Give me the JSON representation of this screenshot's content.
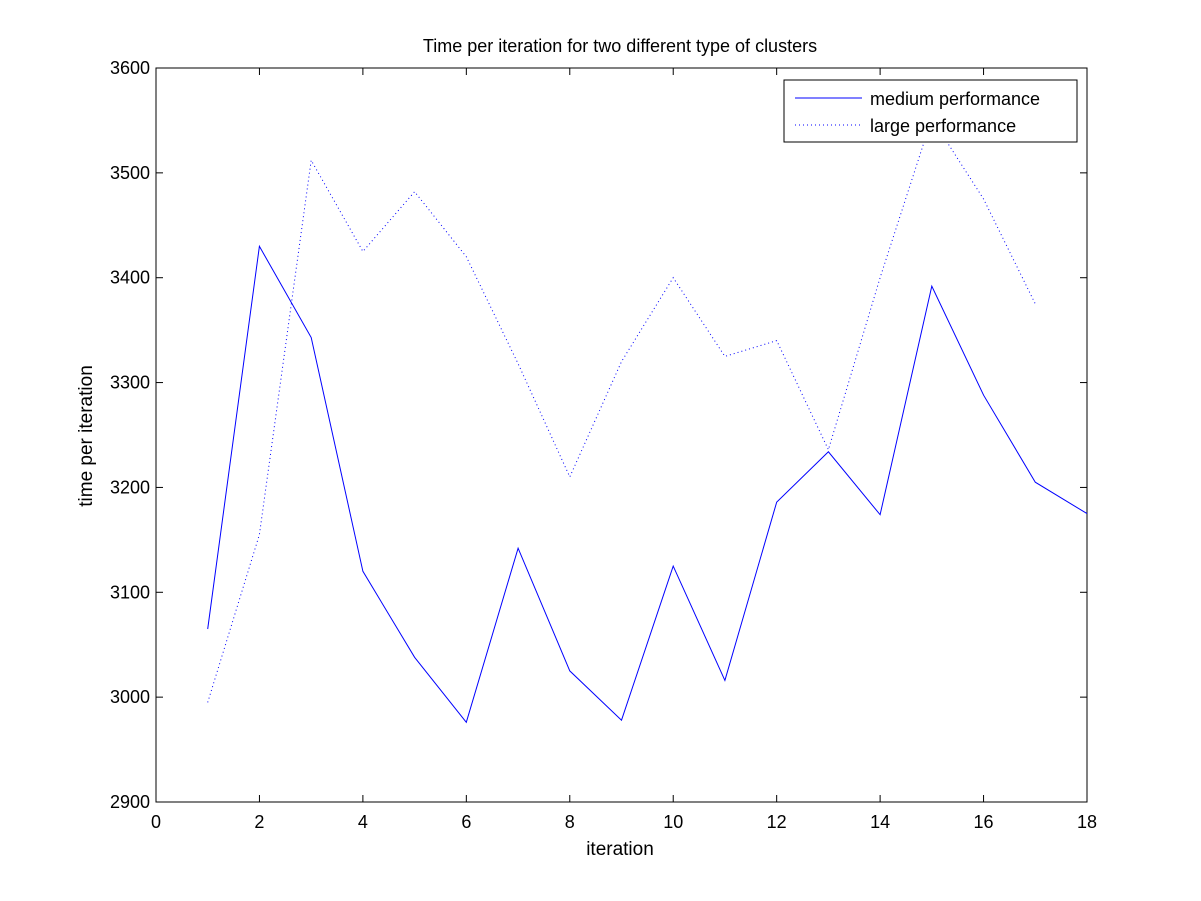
{
  "chart_data": {
    "type": "line",
    "title": "Time per iteration for two different type of clusters",
    "xlabel": "iteration",
    "ylabel": "time per iteration",
    "xlim": [
      0,
      18
    ],
    "ylim": [
      2900,
      3600
    ],
    "xticks": [
      0,
      2,
      4,
      6,
      8,
      10,
      12,
      14,
      16,
      18
    ],
    "yticks": [
      2900,
      3000,
      3100,
      3200,
      3300,
      3400,
      3500,
      3600
    ],
    "grid": false,
    "legend_position": "top-right",
    "series": [
      {
        "name": "medium performance",
        "style": "solid",
        "color": "#0000ff",
        "x": [
          1,
          2,
          3,
          4,
          5,
          6,
          7,
          8,
          9,
          10,
          11,
          12,
          13,
          14,
          15,
          16,
          17,
          18
        ],
        "values": [
          3065,
          3430,
          3343,
          3120,
          3038,
          2976,
          3142,
          3025,
          2978,
          3125,
          3016,
          3186,
          3234,
          3174,
          3392,
          3288,
          3205,
          3175
        ]
      },
      {
        "name": "large performance",
        "style": "dotted",
        "color": "#0000ff",
        "x": [
          1,
          2,
          3,
          4,
          5,
          6,
          7,
          8,
          9,
          10,
          11,
          12,
          13,
          14,
          15,
          16,
          17
        ],
        "values": [
          2995,
          3155,
          3512,
          3425,
          3482,
          3420,
          3318,
          3210,
          3320,
          3400,
          3325,
          3340,
          3236,
          3400,
          3552,
          3475,
          3375
        ]
      }
    ]
  }
}
